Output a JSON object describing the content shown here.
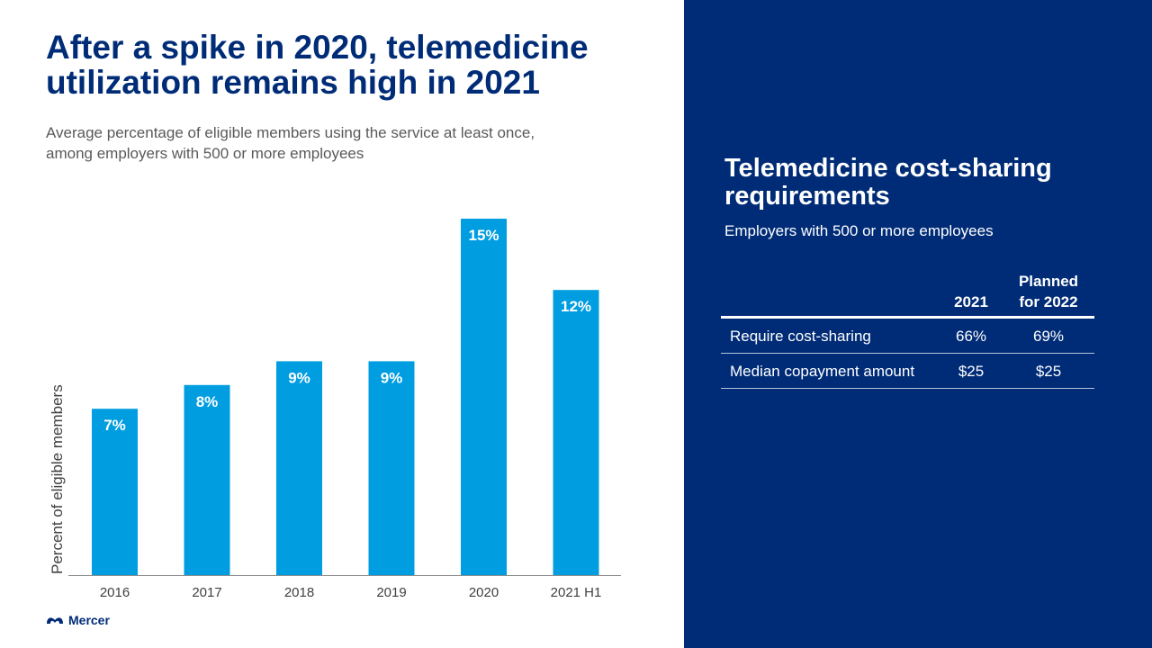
{
  "slide": {
    "title_line1": "After a spike in 2020, telemedicine",
    "title_line2": "utilization remains high in 2021",
    "subtitle_line1": "Average percentage of eligible members using the service at least once,",
    "subtitle_line2": "among employers with 500 or more employees",
    "logo_text": "Mercer"
  },
  "chart_data": {
    "type": "bar",
    "categories": [
      "2016",
      "2017",
      "2018",
      "2019",
      "2020",
      "2021 H1"
    ],
    "values": [
      7,
      8,
      9,
      9,
      15,
      12
    ],
    "value_labels": [
      "7%",
      "8%",
      "9%",
      "9%",
      "15%",
      "12%"
    ],
    "title": "",
    "xlabel": "",
    "ylabel": "Percent of eligible members",
    "ylim": [
      0,
      15
    ],
    "grid": false,
    "bar_color": "#009de0"
  },
  "panel": {
    "title_line1": "Telemedicine cost-sharing",
    "title_line2": "requirements",
    "subtitle": "Employers with 500 or more employees",
    "table": {
      "col1_header": "2021",
      "col2_header_line1": "Planned",
      "col2_header_line2": "for 2022",
      "rows": [
        {
          "label": "Require cost-sharing",
          "v2021": "66%",
          "v2022": "69%"
        },
        {
          "label": "Median copayment amount",
          "v2021": "$25",
          "v2022": "$25"
        }
      ]
    }
  },
  "colors": {
    "navy": "#002c77",
    "bar": "#009de0"
  }
}
